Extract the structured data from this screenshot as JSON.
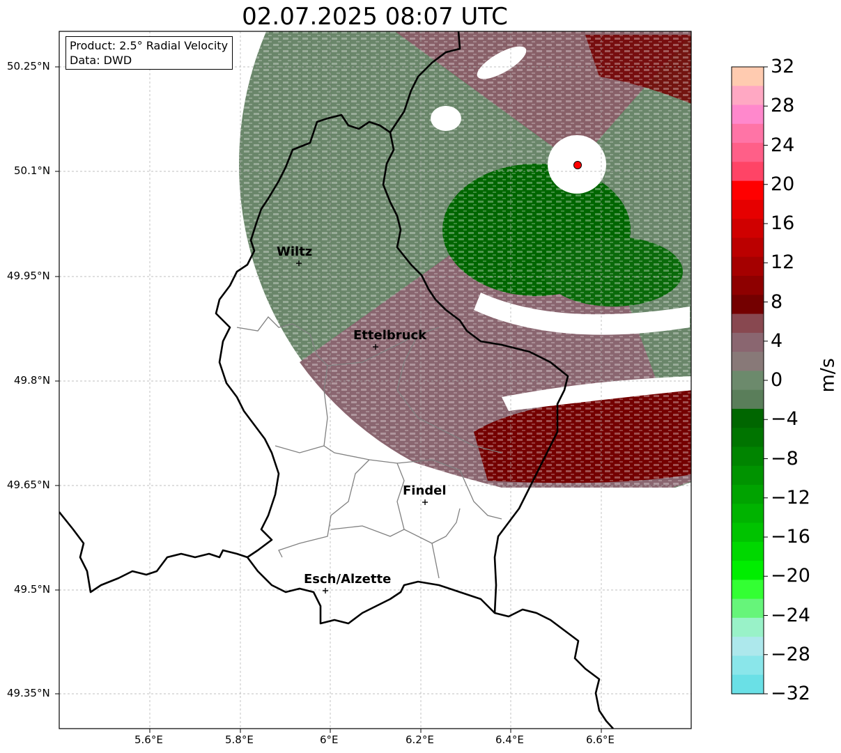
{
  "title": "02.07.2025 08:07 UTC",
  "info": {
    "product": "Product: 2.5° Radial Velocity",
    "data": "Data: DWD"
  },
  "lat_ticks": [
    "50.25°N",
    "50.1°N",
    "49.95°N",
    "49.8°N",
    "49.65°N",
    "49.5°N",
    "49.35°N"
  ],
  "lon_ticks": [
    "5.6°E",
    "5.8°E",
    "6°E",
    "6.2°E",
    "6.4°E",
    "6.6°E"
  ],
  "cities": [
    {
      "name": "Wiltz",
      "lon": 5.93,
      "lat": 49.97
    },
    {
      "name": "Ettelbruck",
      "lon": 6.1,
      "lat": 49.85
    },
    {
      "name": "Findel",
      "lon": 6.21,
      "lat": 49.63
    },
    {
      "name": "Esch/Alzette",
      "lon": 5.99,
      "lat": 49.5
    }
  ],
  "radar_site": {
    "lon": 6.55,
    "lat": 50.11
  },
  "colorbar": {
    "unit": "m/s",
    "ticks": [
      "32",
      "28",
      "24",
      "20",
      "16",
      "12",
      "8",
      "4",
      "0",
      "−4",
      "−8",
      "−12",
      "−16",
      "−20",
      "−24",
      "−28",
      "−32"
    ],
    "colors": [
      "#ffcbb0",
      "#ffa8c3",
      "#ff88cc",
      "#ff74a6",
      "#ff5f88",
      "#ff4466",
      "#ff0000",
      "#e60000",
      "#d00000",
      "#bb0000",
      "#a50000",
      "#8e0000",
      "#740000",
      "#884850",
      "#8a6670",
      "#887978",
      "#6c8a6c",
      "#5a7e5a",
      "#006600",
      "#007400",
      "#008400",
      "#009300",
      "#00a300",
      "#00b300",
      "#00c300",
      "#00d800",
      "#00ee00",
      "#33ff33",
      "#66f57a",
      "#99f2c8",
      "#ade8ec",
      "#8ae6ea",
      "#6ae0e6"
    ]
  },
  "colors": {
    "outbound_dark": "#740000",
    "outbound_mid": "#884850",
    "neutral_pink": "#8a6670",
    "neutral_green": "#5f7f5f",
    "inbound_green": "#006600",
    "radar_marker": "#ff0000"
  }
}
